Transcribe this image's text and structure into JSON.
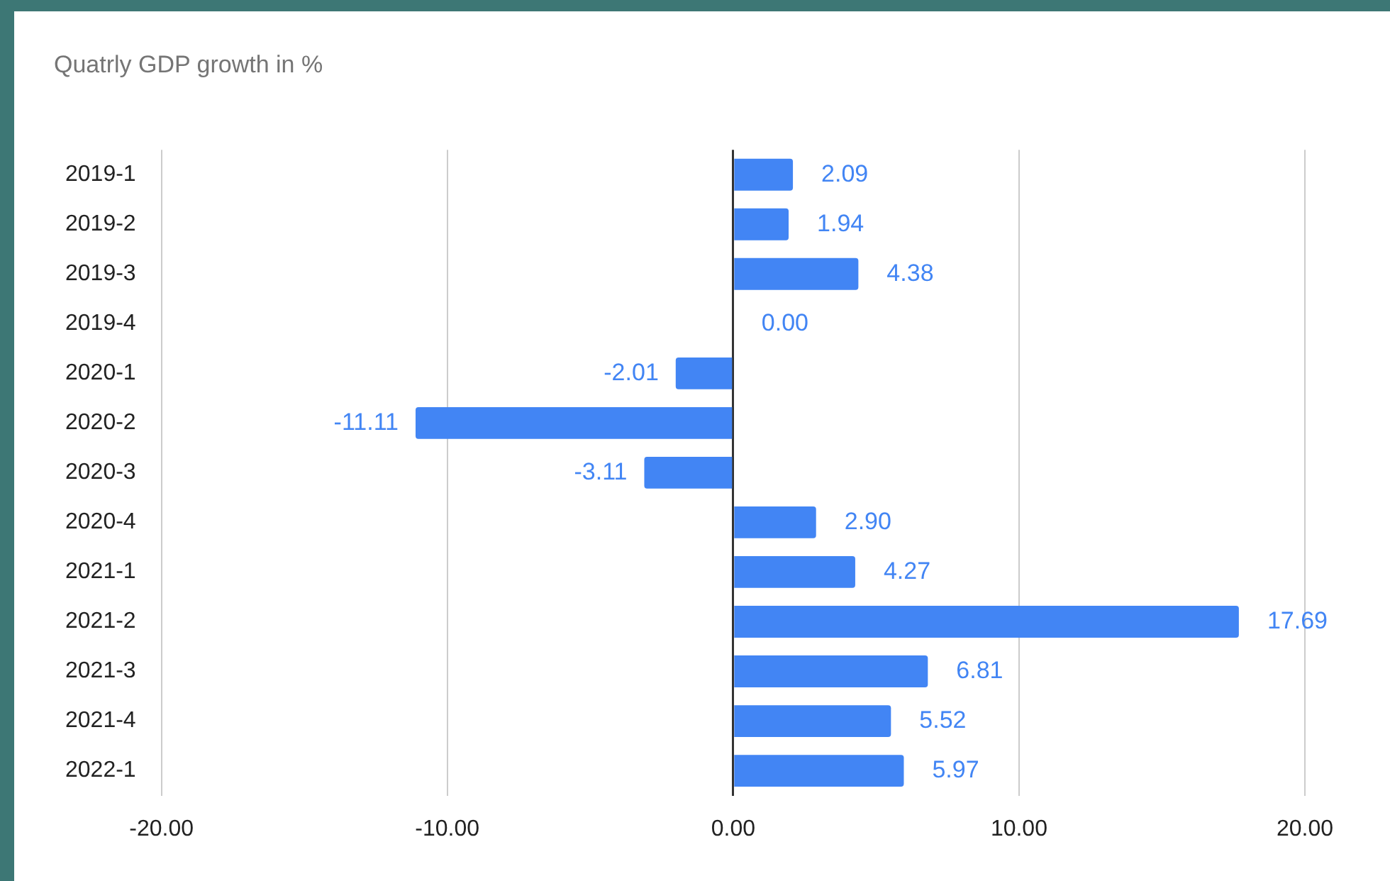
{
  "chart_data": {
    "type": "bar",
    "orientation": "horizontal",
    "title": "Quatrly GDP growth in %",
    "categories": [
      "2019-1",
      "2019-2",
      "2019-3",
      "2019-4",
      "2020-1",
      "2020-2",
      "2020-3",
      "2020-4",
      "2021-1",
      "2021-2",
      "2021-3",
      "2021-4",
      "2022-1"
    ],
    "values": [
      2.09,
      1.94,
      4.38,
      0.0,
      -2.01,
      -11.11,
      -3.11,
      2.9,
      4.27,
      17.69,
      6.81,
      5.52,
      5.97
    ],
    "color": "#4285f4",
    "xlim": [
      -20,
      20
    ],
    "xticks": [
      {
        "value": -20,
        "label": "-20.00"
      },
      {
        "value": -10,
        "label": "-10.00"
      },
      {
        "value": 0,
        "label": "0.00"
      },
      {
        "value": 10,
        "label": "10.00"
      },
      {
        "value": 20,
        "label": "20.00"
      }
    ],
    "grid": "x",
    "legend": false,
    "value_labels": [
      "2.09",
      "1.94",
      "4.38",
      "0.00",
      "-2.01",
      "-11.11",
      "-3.11",
      "2.90",
      "4.27",
      "17.69",
      "6.81",
      "5.52",
      "5.97"
    ]
  }
}
